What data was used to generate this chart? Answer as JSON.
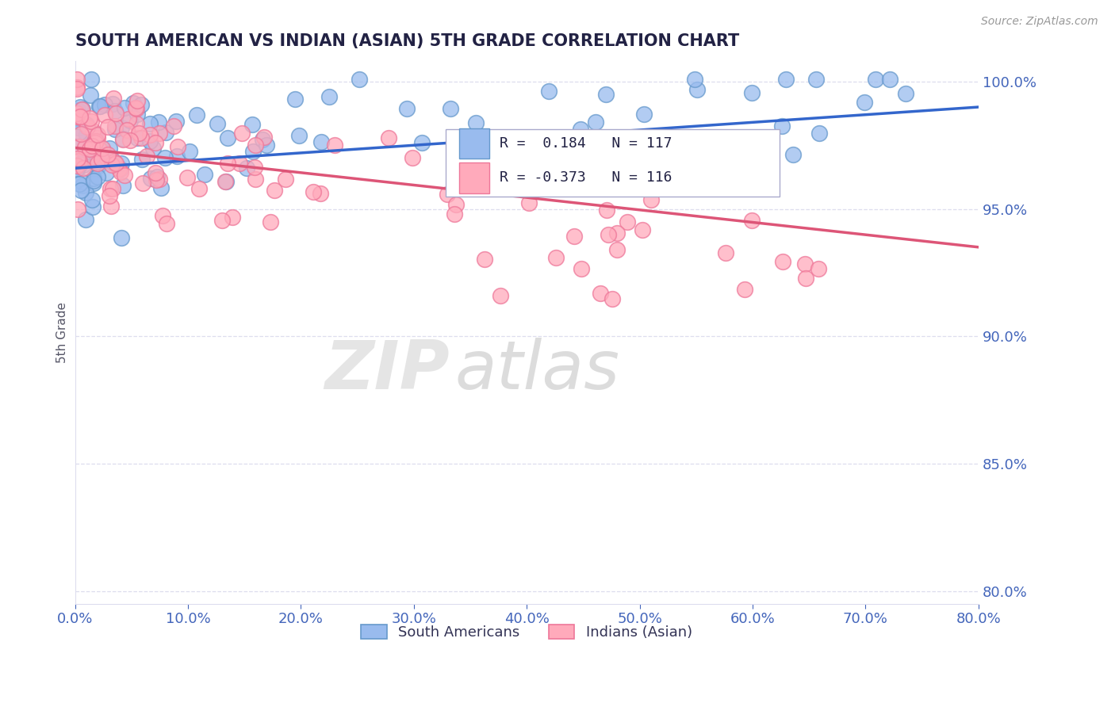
{
  "title": "SOUTH AMERICAN VS INDIAN (ASIAN) 5TH GRADE CORRELATION CHART",
  "source": "Source: ZipAtlas.com",
  "ylabel": "5th Grade",
  "x_min": 0.0,
  "x_max": 0.8,
  "y_min": 0.795,
  "y_max": 1.008,
  "yticks": [
    0.8,
    0.85,
    0.9,
    0.95,
    1.0
  ],
  "xticks": [
    0.0,
    0.1,
    0.2,
    0.3,
    0.4,
    0.5,
    0.6,
    0.7,
    0.8
  ],
  "blue_R": 0.184,
  "blue_N": 117,
  "pink_R": -0.373,
  "pink_N": 116,
  "blue_color": "#99BBEE",
  "pink_color": "#FFAABB",
  "blue_edge": "#6699CC",
  "pink_edge": "#EE7799",
  "trend_blue": "#3366CC",
  "trend_pink": "#DD5577",
  "axis_color": "#4466BB",
  "grid_color": "#DDDDEE",
  "title_color": "#222244",
  "legend_blue_label": "South Americans",
  "legend_pink_label": "Indians (Asian)",
  "blue_trend_y0": 0.966,
  "blue_trend_y1": 0.99,
  "pink_trend_y0": 0.974,
  "pink_trend_y1": 0.935
}
